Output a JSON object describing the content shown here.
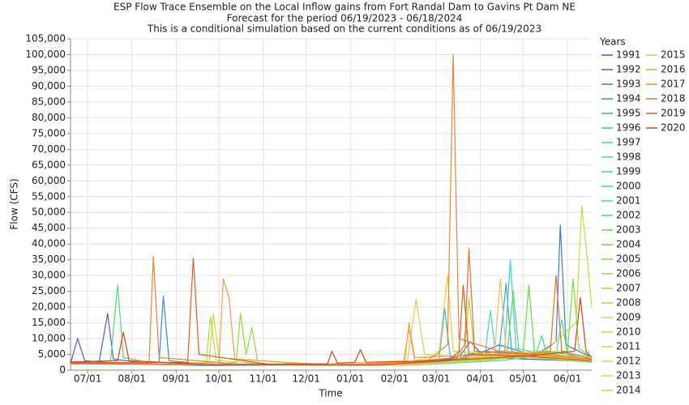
{
  "chart_data": {
    "type": "line",
    "title": "ESP Flow Trace Ensemble on the Local Inflow gains from Fort Randal Dam to Gavins Pt Dam NE",
    "subtitle": "Forecast for the period 06/19/2023 - 06/18/2024",
    "subtitle2": "This is a conditional simulation based on the current conditions as of 06/19/2023",
    "x_label": "Time",
    "y_label": "Flow (CFS)",
    "legend_title": "Years",
    "grid": true,
    "xlim": [
      0,
      365
    ],
    "xticks": [
      {
        "value": 12,
        "label": "07/01"
      },
      {
        "value": 43,
        "label": "08/01"
      },
      {
        "value": 74,
        "label": "09/01"
      },
      {
        "value": 104,
        "label": "10/01"
      },
      {
        "value": 135,
        "label": "11/01"
      },
      {
        "value": 165,
        "label": "12/01"
      },
      {
        "value": 196,
        "label": "01/01"
      },
      {
        "value": 227,
        "label": "02/01"
      },
      {
        "value": 256,
        "label": "03/01"
      },
      {
        "value": 287,
        "label": "04/01"
      },
      {
        "value": 317,
        "label": "05/01"
      },
      {
        "value": 348,
        "label": "06/01"
      }
    ],
    "ylim": [
      0,
      105000
    ],
    "yticks": [
      0,
      {
        "value": 5000,
        "label": "5,000"
      },
      {
        "value": 10000,
        "label": "10,000"
      },
      {
        "value": 15000,
        "label": "15,000"
      },
      {
        "value": 20000,
        "label": "20,000"
      },
      {
        "value": 25000,
        "label": "25,000"
      },
      {
        "value": 30000,
        "label": "30,000"
      },
      {
        "value": 35000,
        "label": "35,000"
      },
      {
        "value": 40000,
        "label": "40,000"
      },
      {
        "value": 45000,
        "label": "45,000"
      },
      {
        "value": 50000,
        "label": "50,000"
      },
      {
        "value": 55000,
        "label": "55,000"
      },
      {
        "value": 60000,
        "label": "60,000"
      },
      {
        "value": 65000,
        "label": "65,000"
      },
      {
        "value": 70000,
        "label": "70,000"
      },
      {
        "value": 75000,
        "label": "75,000"
      },
      {
        "value": 80000,
        "label": "80,000"
      },
      {
        "value": 85000,
        "label": "85,000"
      },
      {
        "value": 90000,
        "label": "90,000"
      },
      {
        "value": 95000,
        "label": "95,000"
      },
      {
        "value": 100000,
        "label": "100,000"
      },
      {
        "value": 105000,
        "label": "105,000"
      }
    ],
    "series": [
      {
        "name": "1991",
        "color": "#5a50c8",
        "x": [
          0,
          5,
          10,
          40,
          100,
          170,
          230,
          270,
          280,
          290,
          320,
          350,
          365
        ],
        "values": [
          2200,
          10000,
          3000,
          2000,
          1600,
          1700,
          1800,
          3000,
          9000,
          4000,
          3500,
          3000,
          2500
        ]
      },
      {
        "name": "1992",
        "color": "#4664d2",
        "x": [
          0,
          20,
          26,
          30,
          60,
          130,
          200,
          255,
          285,
          300,
          330,
          365
        ],
        "values": [
          2400,
          2500,
          18000,
          3500,
          1800,
          1600,
          1700,
          2800,
          5000,
          8000,
          4000,
          2600
        ]
      },
      {
        "name": "1993",
        "color": "#3c78d8",
        "x": [
          0,
          30,
          90,
          160,
          220,
          260,
          300,
          330,
          340,
          343,
          347,
          365
        ],
        "values": [
          2000,
          2200,
          1500,
          1600,
          1800,
          3000,
          5000,
          6000,
          9000,
          46000,
          8000,
          4000
        ]
      },
      {
        "name": "1994",
        "color": "#3c8cdc",
        "x": [
          0,
          40,
          62,
          65,
          69,
          100,
          180,
          250,
          290,
          320,
          365
        ],
        "values": [
          2100,
          2000,
          2500,
          23500,
          3000,
          1700,
          1600,
          2500,
          6000,
          5000,
          3000
        ]
      },
      {
        "name": "1995",
        "color": "#3ca0dc",
        "x": [
          0,
          50,
          120,
          200,
          260,
          300,
          305,
          309,
          330,
          365
        ],
        "values": [
          2300,
          2000,
          1700,
          1600,
          2500,
          5000,
          27500,
          6000,
          4500,
          3000
        ]
      },
      {
        "name": "1996",
        "color": "#3cb4dc",
        "x": [
          0,
          60,
          130,
          210,
          258,
          262,
          266,
          300,
          340,
          365
        ],
        "values": [
          2000,
          1800,
          1600,
          1500,
          3000,
          19500,
          4000,
          6000,
          5000,
          2800
        ]
      },
      {
        "name": "1997",
        "color": "#3cd2d2",
        "x": [
          0,
          70,
          150,
          230,
          290,
          304,
          308,
          312,
          340,
          365
        ],
        "values": [
          2200,
          1900,
          2000,
          1700,
          3500,
          6000,
          35000,
          7000,
          4000,
          3000
        ]
      },
      {
        "name": "1998",
        "color": "#40dcb9",
        "x": [
          0,
          45,
          110,
          190,
          260,
          290,
          294,
          298,
          330,
          365
        ],
        "values": [
          2100,
          2000,
          1700,
          1600,
          2600,
          4000,
          19000,
          4000,
          5000,
          2500
        ]
      },
      {
        "name": "1999",
        "color": "#40dca5",
        "x": [
          0,
          80,
          160,
          240,
          300,
          340,
          344,
          348,
          365
        ],
        "values": [
          2000,
          1800,
          1700,
          1600,
          3000,
          5000,
          16000,
          5000,
          3000
        ]
      },
      {
        "name": "2000",
        "color": "#40dc91",
        "x": [
          0,
          60,
          130,
          200,
          260,
          300,
          330,
          360,
          365
        ],
        "values": [
          2300,
          1900,
          1800,
          1700,
          2200,
          4000,
          6000,
          4500,
          3500
        ]
      },
      {
        "name": "2001",
        "color": "#46dc7d",
        "x": [
          0,
          70,
          140,
          210,
          270,
          310,
          326,
          330,
          334,
          365
        ],
        "values": [
          2000,
          1800,
          1700,
          1600,
          2500,
          4000,
          5000,
          11000,
          4000,
          2800
        ]
      },
      {
        "name": "2002",
        "color": "#50dc6e",
        "x": [
          0,
          28,
          33,
          37,
          60,
          130,
          210,
          270,
          310,
          365
        ],
        "values": [
          2200,
          2500,
          27000,
          4000,
          2000,
          1700,
          1600,
          2800,
          5500,
          3000
        ]
      },
      {
        "name": "2003",
        "color": "#5adc5a",
        "x": [
          0,
          70,
          150,
          230,
          280,
          306,
          310,
          314,
          340,
          365
        ],
        "values": [
          2100,
          1900,
          1700,
          1600,
          3000,
          6000,
          25000,
          6000,
          4000,
          2600
        ]
      },
      {
        "name": "2004",
        "color": "#64dc46",
        "x": [
          0,
          80,
          160,
          240,
          290,
          317,
          321,
          325,
          350,
          365
        ],
        "values": [
          2000,
          1800,
          1700,
          1600,
          3500,
          5000,
          27000,
          5000,
          4500,
          3000
        ]
      },
      {
        "name": "2005",
        "color": "#78dc3c",
        "x": [
          0,
          60,
          140,
          220,
          280,
          320,
          348,
          352,
          356,
          365
        ],
        "values": [
          2300,
          1900,
          1700,
          1600,
          2800,
          5000,
          6000,
          29000,
          7000,
          4000
        ]
      },
      {
        "name": "2006",
        "color": "#8cdc3c",
        "x": [
          0,
          100,
          116,
          119,
          123,
          127,
          131,
          180,
          250,
          300,
          365
        ],
        "values": [
          2100,
          1800,
          2500,
          18000,
          5000,
          13500,
          3000,
          1700,
          2500,
          4500,
          3000
        ]
      },
      {
        "name": "2007",
        "color": "#a0dc3c",
        "x": [
          0,
          60,
          140,
          220,
          270,
          276,
          279,
          283,
          320,
          365
        ],
        "values": [
          2000,
          1900,
          1700,
          1600,
          3000,
          5000,
          23000,
          5000,
          4000,
          2500
        ]
      },
      {
        "name": "2008",
        "color": "#b4dc3c",
        "x": [
          0,
          60,
          95,
          98,
          102,
          150,
          230,
          280,
          320,
          365
        ],
        "values": [
          2200,
          1900,
          2500,
          17000,
          3000,
          1700,
          1600,
          3000,
          5000,
          3000
        ]
      },
      {
        "name": "2009",
        "color": "#c8dc3c",
        "x": [
          0,
          70,
          150,
          230,
          290,
          330,
          354,
          358,
          362,
          365
        ],
        "values": [
          2100,
          1800,
          1700,
          1600,
          3000,
          5000,
          15000,
          52000,
          35000,
          20000
        ]
      },
      {
        "name": "2010",
        "color": "#d2d23c",
        "x": [
          0,
          80,
          97,
          100,
          104,
          170,
          240,
          290,
          330,
          365
        ],
        "values": [
          2000,
          1800,
          2500,
          18000,
          4000,
          1700,
          1600,
          3500,
          5000,
          3000
        ]
      },
      {
        "name": "2011",
        "color": "#dcd23c",
        "x": [
          0,
          70,
          150,
          230,
          258,
          264,
          268,
          300,
          340,
          365
        ],
        "values": [
          2300,
          1900,
          1700,
          1600,
          5000,
          30000,
          6000,
          5000,
          4000,
          3000
        ]
      },
      {
        "name": "2012",
        "color": "#e6d250",
        "x": [
          0,
          60,
          140,
          220,
          270,
          310,
          340,
          365
        ],
        "values": [
          2200,
          2000,
          1700,
          1600,
          3000,
          5500,
          6000,
          4000
        ]
      },
      {
        "name": "2013",
        "color": "#ecc850",
        "x": [
          0,
          80,
          160,
          236,
          242,
          248,
          280,
          320,
          365
        ],
        "values": [
          2000,
          1800,
          1700,
          3000,
          22500,
          5000,
          4000,
          5000,
          3000
        ]
      },
      {
        "name": "2014",
        "color": "#f0be5a",
        "x": [
          0,
          70,
          150,
          230,
          280,
          297,
          301,
          305,
          340,
          365
        ],
        "values": [
          2100,
          1900,
          1700,
          1600,
          3500,
          6000,
          29000,
          6000,
          4500,
          3000
        ]
      },
      {
        "name": "2015",
        "color": "#f0b464",
        "x": [
          0,
          60,
          140,
          220,
          233,
          237,
          241,
          290,
          340,
          365
        ],
        "values": [
          2200,
          1900,
          1700,
          1600,
          2500,
          13000,
          3000,
          4500,
          5000,
          3200
        ]
      },
      {
        "name": "2016",
        "color": "#f0a046",
        "x": [
          0,
          80,
          104,
          107,
          111,
          115,
          180,
          234,
          237,
          241,
          300,
          365
        ],
        "values": [
          2000,
          1800,
          2500,
          29000,
          23000,
          3500,
          1700,
          2500,
          15000,
          4000,
          5000,
          3000
        ]
      },
      {
        "name": "2017",
        "color": "#f08232",
        "x": [
          0,
          55,
          58,
          62,
          120,
          200,
          250,
          264,
          268,
          272,
          300,
          365
        ],
        "values": [
          2300,
          2500,
          36000,
          4000,
          1800,
          1600,
          3000,
          8000,
          100000,
          10000,
          6000,
          3500
        ]
      },
      {
        "name": "2018",
        "color": "#eb6e28",
        "x": [
          0,
          60,
          140,
          220,
          270,
          276,
          279,
          283,
          320,
          336,
          340,
          344,
          365
        ],
        "values": [
          2100,
          1900,
          1700,
          1600,
          4000,
          8000,
          38500,
          6000,
          5000,
          6000,
          30000,
          6000,
          3500
        ]
      },
      {
        "name": "2019",
        "color": "#e65a23",
        "x": [
          0,
          82,
          86,
          90,
          140,
          220,
          265,
          272,
          275,
          279,
          320,
          365
        ],
        "values": [
          2200,
          2500,
          35500,
          5000,
          1800,
          1700,
          3000,
          6000,
          27000,
          5000,
          4500,
          3000
        ]
      },
      {
        "name": "2020",
        "color": "#d24619",
        "x": [
          0,
          33,
          37,
          41,
          100,
          180,
          183,
          187,
          199,
          203,
          207,
          260,
          320,
          353,
          357,
          361,
          365
        ],
        "values": [
          2600,
          3000,
          12000,
          3000,
          1700,
          2000,
          6000,
          2200,
          2500,
          6500,
          2500,
          3000,
          4500,
          6000,
          23000,
          6000,
          4000
        ]
      }
    ]
  }
}
